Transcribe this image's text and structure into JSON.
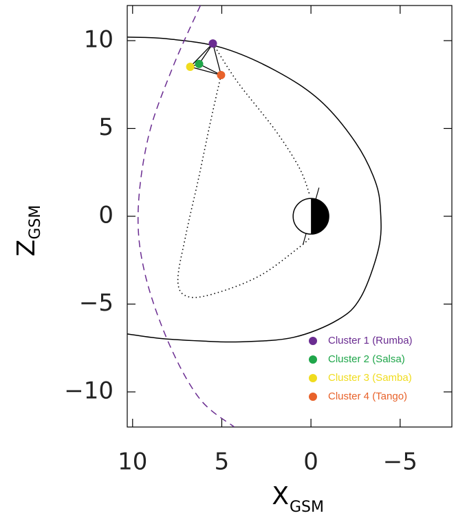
{
  "chart_data": {
    "type": "scatter",
    "xlabel": {
      "text": "X",
      "sub": "GSM"
    },
    "ylabel": {
      "text": "Z",
      "sub": "GSM"
    },
    "xlim": [
      10.3,
      -7.9
    ],
    "ylim": [
      -12,
      12
    ],
    "xticks": [
      10,
      5,
      0,
      {
        "value": -5,
        "label": "−5"
      }
    ],
    "yticks": [
      {
        "value": -10,
        "label": "−10"
      },
      {
        "value": -5,
        "label": "−5"
      },
      0,
      5,
      10
    ],
    "legend": "lower right",
    "series": [
      {
        "name": "Cluster 1 (Rumba)",
        "color": "#6a2c91",
        "x": 5.5,
        "y": 9.84
      },
      {
        "name": "Cluster 2 (Salsa)",
        "color": "#1fa64a",
        "x": 6.27,
        "y": 8.67
      },
      {
        "name": "Cluster 3 (Samba)",
        "color": "#f0dc1e",
        "x": 6.77,
        "y": 8.51
      },
      {
        "name": "Cluster 4 (Tango)",
        "color": "#e8622a",
        "x": 5.04,
        "y": 8.04
      }
    ],
    "curves": [
      {
        "style": "solid",
        "color": "#000000",
        "x": [
          10.3,
          8,
          5,
          2,
          -0.5,
          -2.5,
          -3.6,
          -3.9,
          -3.8,
          -2.8,
          -1.5,
          1,
          4,
          6.2,
          8.5,
          10.3
        ],
        "y": [
          10.2,
          10.1,
          9.6,
          8.3,
          6.6,
          4.2,
          2,
          0.3,
          -1.8,
          -4.6,
          -5.9,
          -6.9,
          -7.15,
          -7.1,
          -6.95,
          -6.7
        ]
      },
      {
        "style": "dashed",
        "color": "#6a2c91",
        "x": [
          6.2,
          7.77,
          9.12,
          9.69,
          9.3,
          7.96,
          6.23,
          4.3
        ],
        "y": [
          12,
          8.43,
          4.5,
          0.2,
          -3.3,
          -7.25,
          -10.4,
          -12
        ]
      },
      {
        "style": "dotted",
        "color": "#000000",
        "x": [
          5.5,
          4.12,
          2.0,
          0.65,
          0.08,
          null,
          5.04,
          5.65,
          6.3,
          7.0,
          7.46,
          6.8,
          5.08,
          2.77,
          0.65,
          0.08
        ],
        "y": [
          9.84,
          7.65,
          4.9,
          2.75,
          1.25,
          null,
          8.04,
          5.3,
          2.16,
          -1.0,
          -3.73,
          -4.6,
          -4.3,
          -3.33,
          -1.76,
          -1.25
        ]
      }
    ],
    "earth": {
      "x": 0,
      "y": 0,
      "r": 1
    }
  }
}
